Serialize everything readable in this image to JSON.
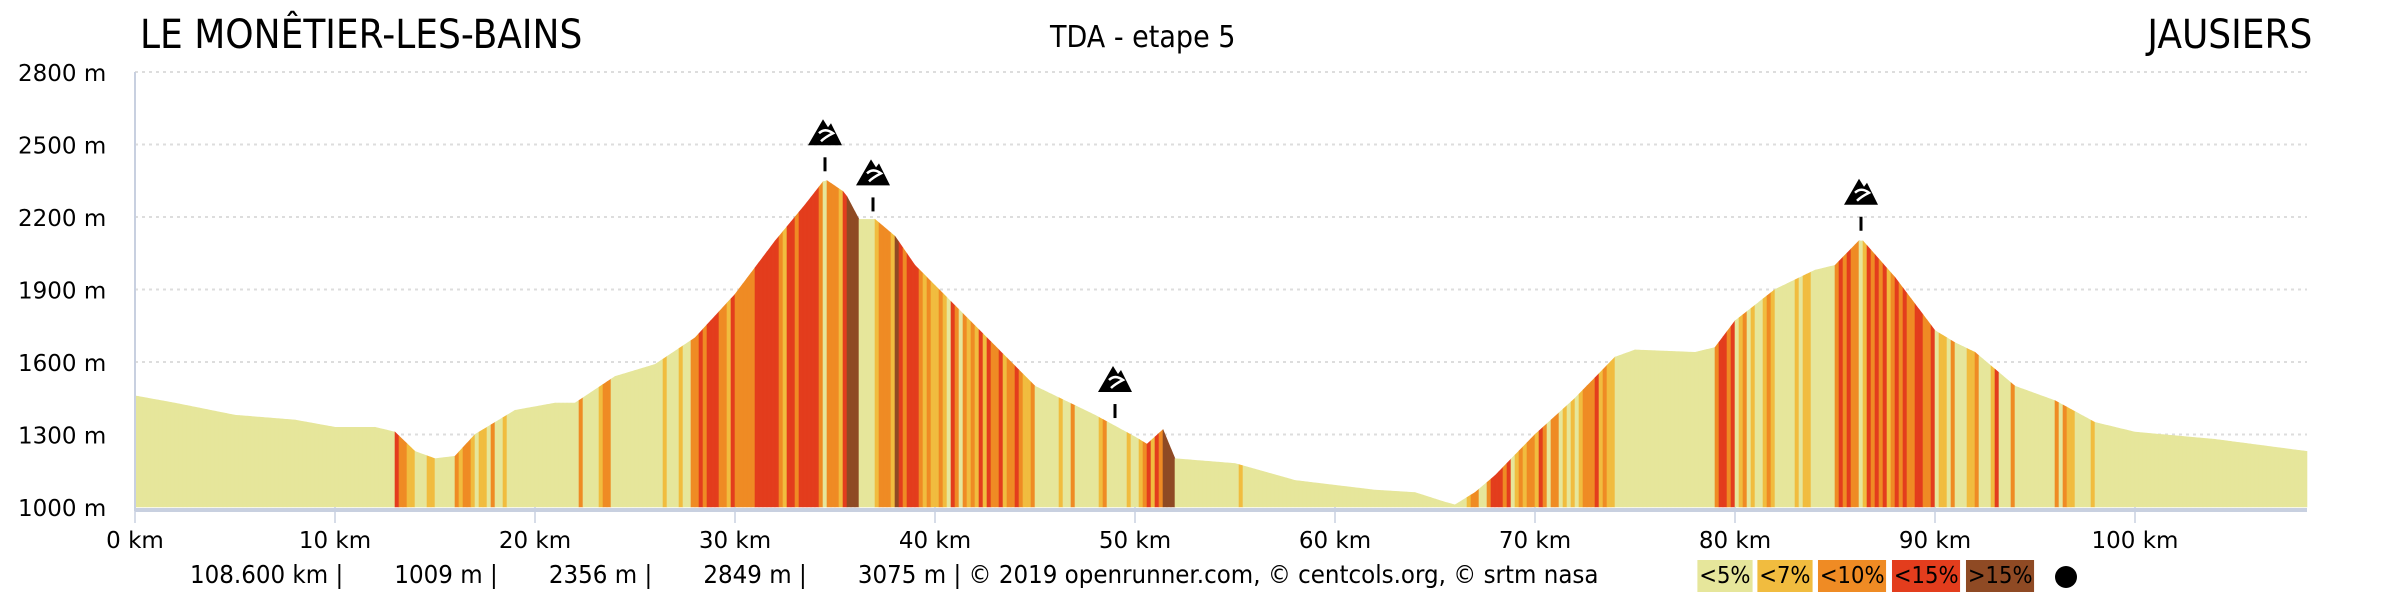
{
  "header": {
    "start": "LE MONÊTIER-LES-BAINS",
    "title": "TDA - etape 5",
    "end": "JAUSIERS"
  },
  "summary": [
    "108.600 km |",
    "1009 m |",
    "2356 m |",
    "2849 m |",
    "3075 m | © 2019 openrunner.com, © centcols.org, © srtm nasa"
  ],
  "legend": [
    {
      "label": "<5%",
      "color": "#e6e69b"
    },
    {
      "label": "<7%",
      "color": "#f1bc3f"
    },
    {
      "label": "<10%",
      "color": "#ef8b24"
    },
    {
      "label": "<15%",
      "color": "#e33d1d"
    },
    {
      "label": ">15%",
      "color": "#8f4a24"
    }
  ],
  "chart_data": {
    "type": "area",
    "title": "TDA - etape 5",
    "xlabel": "km",
    "ylabel": "m",
    "xlim": [
      0,
      108.6
    ],
    "ylim": [
      1000,
      2800
    ],
    "xticks": [
      "0 km",
      "10 km",
      "20 km",
      "30 km",
      "40 km",
      "50 km",
      "60 km",
      "70 km",
      "80 km",
      "90 km",
      "100 km"
    ],
    "xtick_values": [
      0,
      10,
      20,
      30,
      40,
      50,
      60,
      70,
      80,
      90,
      100
    ],
    "yticks": [
      "1000 m",
      "1300 m",
      "1600 m",
      "1900 m",
      "2200 m",
      "2500 m",
      "2800 m"
    ],
    "ytick_values": [
      1000,
      1300,
      1600,
      1900,
      2200,
      2500,
      2800
    ],
    "grid": true,
    "x": [
      0,
      2,
      5,
      8,
      10,
      12,
      13,
      14,
      15,
      16,
      17,
      19,
      21,
      22,
      24,
      26,
      28,
      30,
      32,
      33.5,
      34.5,
      35.5,
      36.2,
      37,
      38,
      39,
      42,
      45,
      48,
      50,
      50.6,
      51.4,
      52,
      55,
      58,
      60,
      62,
      64,
      65.5,
      66,
      67,
      68,
      70,
      72,
      74,
      75,
      78,
      79,
      80,
      82,
      84,
      85,
      86.3,
      88,
      90,
      91,
      92,
      94,
      96,
      98,
      100,
      104,
      108.6
    ],
    "y": [
      1460,
      1430,
      1380,
      1360,
      1330,
      1330,
      1310,
      1230,
      1200,
      1210,
      1300,
      1400,
      1430,
      1430,
      1540,
      1590,
      1700,
      1880,
      2100,
      2250,
      2356,
      2300,
      2190,
      2190,
      2120,
      2000,
      1750,
      1500,
      1380,
      1290,
      1260,
      1320,
      1200,
      1180,
      1110,
      1090,
      1070,
      1060,
      1020,
      1009,
      1060,
      1130,
      1300,
      1450,
      1620,
      1650,
      1640,
      1660,
      1770,
      1900,
      1980,
      2000,
      2110,
      1950,
      1730,
      1680,
      1640,
      1500,
      1440,
      1350,
      1310,
      1280,
      1230
    ],
    "cols_km": [
      34.5,
      36.9,
      49.0,
      86.3
    ],
    "slope_classes": [
      "<5%",
      "<7%",
      "<10%",
      "<15%",
      ">15%"
    ]
  }
}
